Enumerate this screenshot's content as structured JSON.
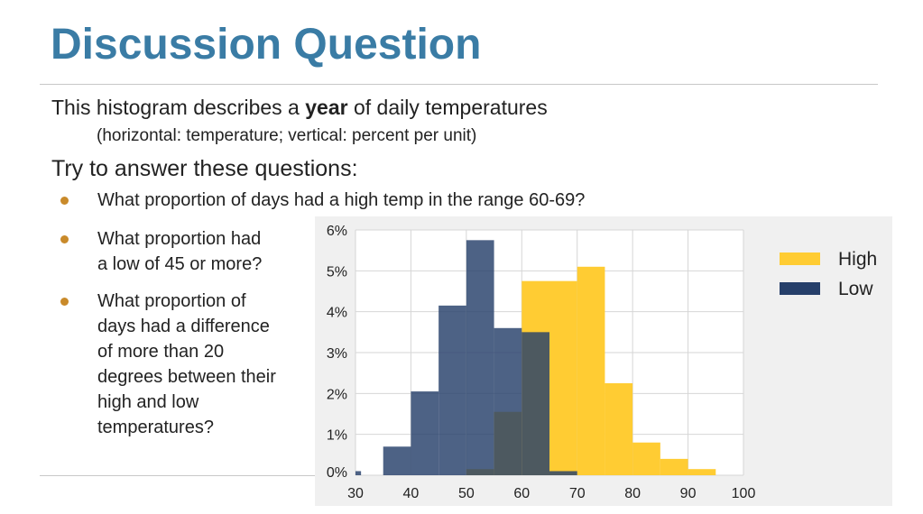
{
  "slide": {
    "title": "Discussion Question",
    "line1_pre": "This histogram describes a ",
    "line1_bold": "year",
    "line1_post": " of daily temperatures",
    "line2": "(horizontal: temperature; vertical: percent per unit)",
    "line3": "Try to answer these questions:",
    "bullets": [
      [
        "What proportion of days had a high temp in the range 60-69?"
      ],
      [
        "What proportion had",
        "a low of 45 or more?"
      ],
      [
        "What proportion of",
        "days had a difference",
        "of more than 20",
        "degrees between their",
        "high and low",
        "temperatures?"
      ]
    ]
  },
  "colors": {
    "title": "#3a7ca5",
    "bullet": "#c98a2a",
    "high": "#ffcc33",
    "low": "#263f6a",
    "overlap": "#454530"
  },
  "chart_data": {
    "type": "histogram",
    "x_ticks": [
      30,
      40,
      50,
      60,
      70,
      80,
      90,
      100
    ],
    "y_ticks": [
      0,
      1,
      2,
      3,
      4,
      5,
      6
    ],
    "y_tick_labels": [
      "0%",
      "1%",
      "2%",
      "3%",
      "4%",
      "5%",
      "6%"
    ],
    "xlim": [
      30,
      100
    ],
    "ylim": [
      0,
      6
    ],
    "grid": true,
    "legend_position": "top-right",
    "series": [
      {
        "name": "High",
        "color": "#ffcc33",
        "bins": [
          {
            "x0": 50,
            "x1": 55,
            "value": 0.15
          },
          {
            "x0": 55,
            "x1": 60,
            "value": 1.55
          },
          {
            "x0": 60,
            "x1": 65,
            "value": 4.75
          },
          {
            "x0": 65,
            "x1": 70,
            "value": 4.75
          },
          {
            "x0": 70,
            "x1": 75,
            "value": 5.1
          },
          {
            "x0": 75,
            "x1": 80,
            "value": 2.25
          },
          {
            "x0": 80,
            "x1": 85,
            "value": 0.8
          },
          {
            "x0": 85,
            "x1": 90,
            "value": 0.4
          },
          {
            "x0": 90,
            "x1": 95,
            "value": 0.15
          }
        ]
      },
      {
        "name": "Low",
        "color": "#263f6a",
        "bins": [
          {
            "x0": 30,
            "x1": 31,
            "value": 0.1
          },
          {
            "x0": 35,
            "x1": 40,
            "value": 0.7
          },
          {
            "x0": 40,
            "x1": 45,
            "value": 2.05
          },
          {
            "x0": 45,
            "x1": 50,
            "value": 4.15
          },
          {
            "x0": 50,
            "x1": 55,
            "value": 5.75
          },
          {
            "x0": 55,
            "x1": 60,
            "value": 3.6
          },
          {
            "x0": 60,
            "x1": 65,
            "value": 3.5
          },
          {
            "x0": 65,
            "x1": 70,
            "value": 0.1
          }
        ]
      }
    ]
  }
}
